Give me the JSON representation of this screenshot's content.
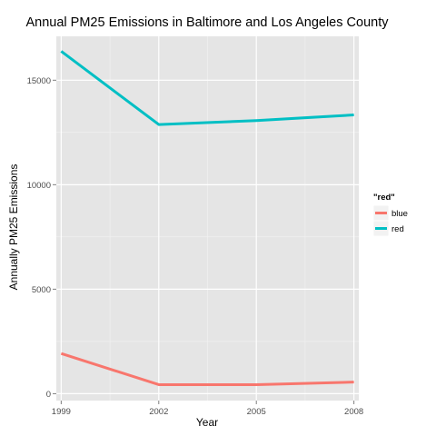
{
  "chart_data": {
    "type": "line",
    "title": "Annual PM25 Emissions in Baltimore and Los Angeles County",
    "xlabel": "Year",
    "ylabel": "Annually PM25 Emissions",
    "x": [
      1999,
      2002,
      2005,
      2008
    ],
    "x_ticks": [
      1999,
      2002,
      2005,
      2008
    ],
    "y_ticks": [
      0,
      5000,
      10000,
      15000
    ],
    "xlim": [
      1998.85,
      2008.15
    ],
    "ylim": [
      -330,
      17100
    ],
    "grid": true,
    "legend_position": "right",
    "legend_title": "\"red\"",
    "series": [
      {
        "name": "blue",
        "color": "#F8766D",
        "values": [
          1924,
          432,
          431,
          556
        ]
      },
      {
        "name": "red",
        "color": "#00BFC4",
        "values": [
          16385,
          12880,
          13070,
          13340
        ]
      }
    ]
  }
}
